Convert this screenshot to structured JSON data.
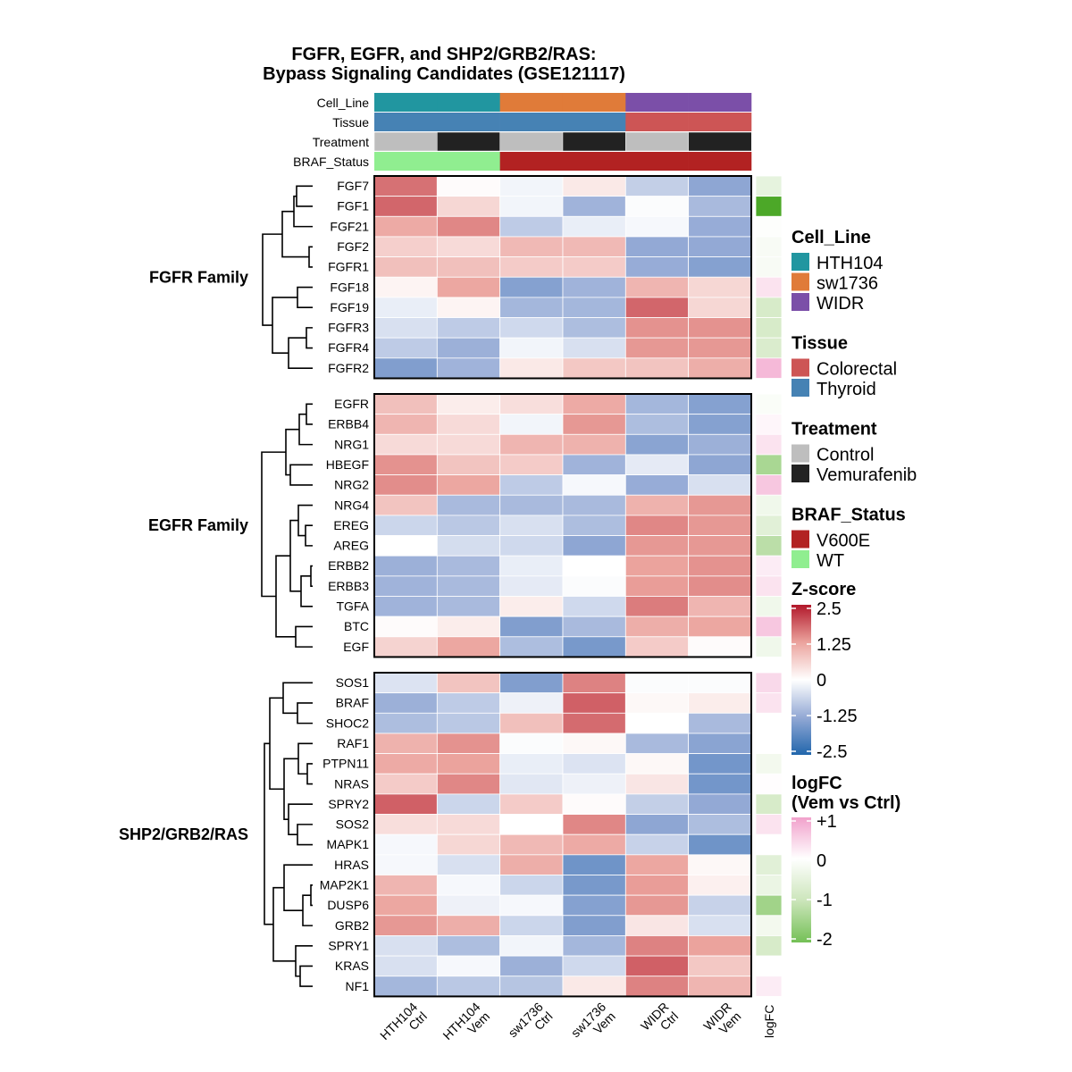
{
  "chart_data": {
    "type": "heatmap",
    "title": [
      "FGFR, EGFR, and SHP2/GRB2/RAS:",
      "Bypass Signaling Candidates (GSE121117)"
    ],
    "columns": [
      {
        "label": [
          "HTH104",
          "Ctrl"
        ],
        "Cell_Line": "HTH104",
        "Tissue": "Thyroid",
        "Treatment": "Control",
        "BRAF_Status": "WT"
      },
      {
        "label": [
          "HTH104",
          "Vem"
        ],
        "Cell_Line": "HTH104",
        "Tissue": "Thyroid",
        "Treatment": "Vemurafenib",
        "BRAF_Status": "WT"
      },
      {
        "label": [
          "sw1736",
          "Ctrl"
        ],
        "Cell_Line": "sw1736",
        "Tissue": "Thyroid",
        "Treatment": "Control",
        "BRAF_Status": "V600E"
      },
      {
        "label": [
          "sw1736",
          "Vem"
        ],
        "Cell_Line": "sw1736",
        "Tissue": "Thyroid",
        "Treatment": "Vemurafenib",
        "BRAF_Status": "V600E"
      },
      {
        "label": [
          "WIDR",
          "Ctrl"
        ],
        "Cell_Line": "WIDR",
        "Tissue": "Colorectal",
        "Treatment": "Control",
        "BRAF_Status": "V600E"
      },
      {
        "label": [
          "WIDR",
          "Vem"
        ],
        "Cell_Line": "WIDR",
        "Tissue": "Colorectal",
        "Treatment": "Vemurafenib",
        "BRAF_Status": "V600E"
      }
    ],
    "annotation_rows": [
      "Cell_Line",
      "Tissue",
      "Treatment",
      "BRAF_Status"
    ],
    "logfc_column_label": "logFC",
    "groups": [
      {
        "name": "FGFR Family",
        "genes": [
          "FGF7",
          "FGF1",
          "FGF21",
          "FGF2",
          "FGFR1",
          "FGF18",
          "FGF19",
          "FGFR3",
          "FGFR4",
          "FGFR2"
        ],
        "z": [
          [
            1.7,
            0.05,
            -0.15,
            0.3,
            -0.7,
            -1.3
          ],
          [
            1.8,
            0.55,
            -0.15,
            -1.1,
            -0.05,
            -1.0
          ],
          [
            1.15,
            1.5,
            -0.75,
            -0.25,
            -0.1,
            -1.2
          ],
          [
            0.65,
            0.5,
            0.95,
            0.95,
            -1.25,
            -1.25
          ],
          [
            0.85,
            0.85,
            0.7,
            0.7,
            -1.2,
            -1.4
          ],
          [
            0.15,
            1.2,
            -1.4,
            -1.1,
            1.0,
            0.55
          ],
          [
            -0.25,
            0.15,
            -1.05,
            -1.05,
            1.8,
            0.55
          ],
          [
            -0.45,
            -0.75,
            -0.55,
            -0.95,
            1.4,
            1.4
          ],
          [
            -0.75,
            -1.15,
            -0.15,
            -0.45,
            1.35,
            1.35
          ],
          [
            -1.45,
            -1.1,
            0.3,
            0.75,
            0.8,
            1.1
          ]
        ],
        "logFC": [
          -0.5,
          -2.6,
          -0.05,
          -0.15,
          -0.15,
          0.3,
          -0.8,
          -0.8,
          -0.75,
          0.75
        ],
        "dendrogram": [
          [
            [
              [
                "FGF7",
                "FGF1",
                18
              ],
              "FGF21",
              21
            ],
            [
              "FGF2",
              "FGFR1",
              4
            ],
            34
          ],
          [
            [
              "FGF18",
              "FGF19",
              17
            ],
            [
              [
                "FGFR3",
                "FGFR4",
                7
              ],
              "FGFR2",
              27
            ],
            45
          ],
          56
        ]
      },
      {
        "name": "EGFR Family",
        "genes": [
          "EGFR",
          "ERBB4",
          "NRG1",
          "HBEGF",
          "NRG2",
          "NRG4",
          "EREG",
          "AREG",
          "ERBB2",
          "ERBB3",
          "TGFA",
          "BTC",
          "EGF"
        ],
        "z": [
          [
            0.85,
            0.25,
            0.45,
            1.15,
            -1.05,
            -1.4
          ],
          [
            1.0,
            0.5,
            -0.15,
            1.35,
            -0.95,
            -1.4
          ],
          [
            0.5,
            0.5,
            1.0,
            1.05,
            -1.35,
            -1.15
          ],
          [
            1.4,
            0.8,
            0.7,
            -1.1,
            -0.3,
            -1.3
          ],
          [
            1.45,
            1.2,
            -0.75,
            -0.1,
            -1.2,
            -0.45
          ],
          [
            0.8,
            -1.0,
            -1.0,
            -1.0,
            1.05,
            1.35
          ],
          [
            -0.6,
            -0.8,
            -0.45,
            -0.95,
            1.5,
            1.35
          ],
          [
            0.0,
            -0.5,
            -0.55,
            -1.3,
            1.35,
            1.35
          ],
          [
            -1.15,
            -1.0,
            -0.25,
            0.0,
            1.25,
            1.4
          ],
          [
            -1.1,
            -1.0,
            -0.3,
            -0.05,
            1.3,
            1.45
          ],
          [
            -1.1,
            -1.0,
            0.25,
            -0.55,
            1.6,
            1.0
          ],
          [
            0.05,
            0.25,
            -1.45,
            -1.0,
            1.1,
            1.2
          ],
          [
            0.6,
            1.2,
            -0.95,
            -1.55,
            0.7,
            0.05
          ]
        ],
        "logFC": [
          -0.1,
          0.1,
          0.3,
          -1.4,
          0.6,
          -0.3,
          -0.6,
          -1.2,
          0.2,
          0.3,
          -0.3,
          0.6,
          -0.3
        ],
        "dendrogram": [
          [
            [
              [
                "EGFR",
                "ERBB4",
                7
              ],
              "NRG1",
              15
            ],
            [
              "HBEGF",
              "NRG2",
              25
            ],
            30
          ],
          [
            [
              [
                "NRG4",
                [
                  "EREG",
                  "AREG",
                  8
                ],
                16
              ],
              [
                [
                  "ERBB2",
                  "ERBB3",
                  2
                ],
                "TGFA",
                13
              ],
              25
            ],
            [
              "BTC",
              "EGF",
              19
            ],
            41
          ],
          57
        ]
      },
      {
        "name": "SHP2/GRB2/RAS",
        "genes": [
          "SOS1",
          "BRAF",
          "SHOC2",
          "RAF1",
          "PTPN11",
          "NRAS",
          "SPRY2",
          "SOS2",
          "MAPK1",
          "HRAS",
          "MAP2K1",
          "DUSP6",
          "GRB2",
          "SPRY1",
          "KRAS",
          "NF1"
        ],
        "z": [
          [
            -0.4,
            0.8,
            -1.45,
            1.55,
            -0.05,
            -0.05
          ],
          [
            -1.15,
            -0.75,
            -0.2,
            1.85,
            0.1,
            0.25
          ],
          [
            -0.95,
            -0.8,
            0.85,
            1.75,
            0.0,
            -1.0
          ],
          [
            1.05,
            1.4,
            -0.05,
            0.1,
            -1.0,
            -1.35
          ],
          [
            1.15,
            1.25,
            -0.25,
            -0.4,
            0.1,
            -1.6
          ],
          [
            0.7,
            1.5,
            -0.35,
            -0.2,
            0.35,
            -1.6
          ],
          [
            1.85,
            -0.6,
            0.7,
            0.05,
            -0.7,
            -1.25
          ],
          [
            0.45,
            0.5,
            0.0,
            1.5,
            -1.3,
            -0.95
          ],
          [
            -0.1,
            0.55,
            0.95,
            1.15,
            -0.65,
            -1.65
          ],
          [
            -0.1,
            -0.45,
            1.1,
            -1.65,
            1.2,
            0.1
          ],
          [
            1.0,
            -0.1,
            -0.6,
            -1.55,
            1.3,
            0.2
          ],
          [
            1.2,
            -0.2,
            -0.1,
            -1.4,
            1.35,
            -0.65
          ],
          [
            1.35,
            1.1,
            -0.6,
            -1.45,
            0.35,
            -0.45
          ],
          [
            -0.45,
            -0.95,
            -0.15,
            -1.05,
            1.55,
            1.25
          ],
          [
            -0.45,
            -0.1,
            -1.15,
            -0.55,
            1.85,
            0.75
          ],
          [
            -1.05,
            -0.8,
            -0.85,
            0.3,
            1.55,
            1.0
          ]
        ],
        "logFC": [
          0.4,
          0.3,
          0.0,
          0.0,
          -0.25,
          0.02,
          -0.8,
          0.3,
          0.0,
          -0.6,
          -0.4,
          -1.5,
          -0.25,
          -0.8,
          0.0,
          0.2
        ],
        "dendrogram": [
          [
            [
              "SOS1",
              [
                "BRAF",
                "SHOC2",
                17
              ],
              33
            ],
            [
              [
                "RAF1",
                [
                  "PTPN11",
                  "NRAS",
                  6
                ],
                16
              ],
              [
                "SPRY2",
                [
                  "SOS2",
                  "MAPK1",
                  17
                ],
                27
              ],
              32
            ],
            48
          ],
          [
            [
              "HRAS",
              [
                [
                  "MAP2K1",
                  "DUSP6",
                  2
                ],
                "GRB2",
                11
              ],
              32
            ],
            [
              "SPRY1",
              [
                "KRAS",
                "NF1",
                14
              ],
              19
            ],
            44
          ],
          54
        ]
      }
    ],
    "legends": {
      "Cell_Line": {
        "title": "Cell_Line",
        "items": [
          {
            "label": "HTH104",
            "color": "#2196A0"
          },
          {
            "label": "sw1736",
            "color": "#E07B39"
          },
          {
            "label": "WIDR",
            "color": "#7B4FA8"
          }
        ]
      },
      "Tissue": {
        "title": "Tissue",
        "items": [
          {
            "label": "Colorectal",
            "color": "#CD5555"
          },
          {
            "label": "Thyroid",
            "color": "#4682B4"
          }
        ]
      },
      "Treatment": {
        "title": "Treatment",
        "items": [
          {
            "label": "Control",
            "color": "#BEBEBE"
          },
          {
            "label": "Vemurafenib",
            "color": "#222222"
          }
        ]
      },
      "BRAF_Status": {
        "title": "BRAF_Status",
        "items": [
          {
            "label": "V600E",
            "color": "#B22222"
          },
          {
            "label": "WT",
            "color": "#90EE90"
          }
        ]
      },
      "zscore": {
        "title": "Z-score",
        "ticks": [
          "2.5",
          "1.25",
          "0",
          "-1.25",
          "-2.5"
        ],
        "range": [
          -2.5,
          2.5
        ],
        "colors": {
          "low": "#2166AC",
          "mid_low": "#93A9D5",
          "mid": "#FFFFFF",
          "mid_high": "#EBA39D",
          "high": "#B2182B"
        }
      },
      "logfc": {
        "title": [
          "logFC",
          "(Vem vs Ctrl)"
        ],
        "ticks": [
          "+1",
          "0",
          "-1",
          "-2"
        ],
        "range": [
          -2,
          1
        ],
        "colors": {
          "high": "#F1A1CB",
          "mid": "#FFFFFF",
          "mid_low": "#CDE6BC",
          "low": "#74C056",
          "lowest": "#4CA828"
        }
      }
    }
  }
}
